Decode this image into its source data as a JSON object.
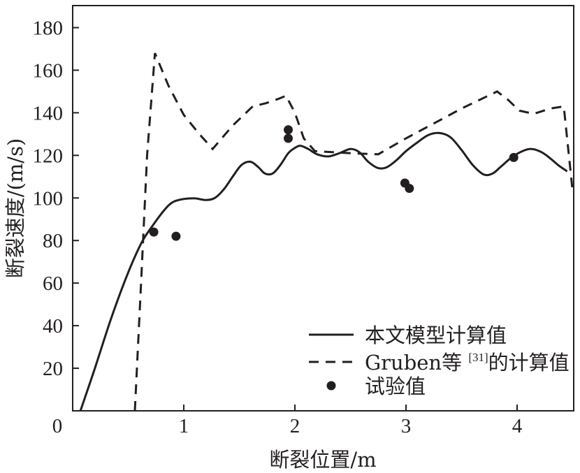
{
  "chart_data": {
    "type": "line",
    "xlabel": "断裂位置/m",
    "ylabel": "断裂速度/(m/s)",
    "xlim": [
      0,
      4.5
    ],
    "ylim": [
      0,
      190
    ],
    "x_ticks": [
      0,
      1,
      2,
      3,
      4
    ],
    "y_ticks": [
      20,
      40,
      60,
      80,
      100,
      120,
      140,
      160,
      180
    ],
    "grid": false,
    "legend_position": "bottom-right",
    "series": [
      {
        "name": "本文模型计算值",
        "style": "solid",
        "color": "#231f20",
        "points": [
          [
            0.07,
            0
          ],
          [
            0.2,
            20
          ],
          [
            0.35,
            44
          ],
          [
            0.5,
            65
          ],
          [
            0.62,
            79
          ],
          [
            0.72,
            87
          ],
          [
            0.82,
            94
          ],
          [
            0.9,
            98
          ],
          [
            1.0,
            99.5
          ],
          [
            1.1,
            99.8
          ],
          [
            1.2,
            99
          ],
          [
            1.28,
            100
          ],
          [
            1.36,
            104
          ],
          [
            1.44,
            110
          ],
          [
            1.52,
            115.5
          ],
          [
            1.6,
            117
          ],
          [
            1.67,
            114.5
          ],
          [
            1.73,
            111.5
          ],
          [
            1.8,
            111.5
          ],
          [
            1.87,
            115.5
          ],
          [
            1.94,
            121
          ],
          [
            2.0,
            123.5
          ],
          [
            2.05,
            124.5
          ],
          [
            2.12,
            123
          ],
          [
            2.2,
            120.5
          ],
          [
            2.3,
            119.5
          ],
          [
            2.4,
            121
          ],
          [
            2.5,
            123
          ],
          [
            2.58,
            121.5
          ],
          [
            2.66,
            117
          ],
          [
            2.75,
            114
          ],
          [
            2.83,
            114.5
          ],
          [
            2.92,
            118
          ],
          [
            3.0,
            122
          ],
          [
            3.1,
            126
          ],
          [
            3.2,
            129.5
          ],
          [
            3.3,
            130.5
          ],
          [
            3.4,
            128.5
          ],
          [
            3.5,
            122.5
          ],
          [
            3.6,
            115.5
          ],
          [
            3.7,
            111
          ],
          [
            3.78,
            111.5
          ],
          [
            3.85,
            114.5
          ],
          [
            3.95,
            119
          ],
          [
            4.05,
            122
          ],
          [
            4.13,
            123
          ],
          [
            4.22,
            121.5
          ],
          [
            4.3,
            118.5
          ],
          [
            4.38,
            115
          ],
          [
            4.45,
            112.5
          ]
        ]
      },
      {
        "name": "Gruben等的计算值",
        "name_superscript": "[31]",
        "style": "dashed",
        "color": "#231f20",
        "points": [
          [
            0.56,
            0
          ],
          [
            0.62,
            65
          ],
          [
            0.67,
            120
          ],
          [
            0.74,
            168
          ],
          [
            0.86,
            153
          ],
          [
            1.0,
            139
          ],
          [
            1.14,
            130
          ],
          [
            1.26,
            123
          ],
          [
            1.44,
            134
          ],
          [
            1.62,
            143
          ],
          [
            1.74,
            144.5
          ],
          [
            1.85,
            146.5
          ],
          [
            1.92,
            148
          ],
          [
            2.0,
            140
          ],
          [
            2.08,
            128
          ],
          [
            2.18,
            122
          ],
          [
            2.5,
            121
          ],
          [
            2.75,
            120.5
          ],
          [
            3.0,
            128
          ],
          [
            3.25,
            135
          ],
          [
            3.5,
            142
          ],
          [
            3.82,
            150
          ],
          [
            3.92,
            146
          ],
          [
            4.02,
            141
          ],
          [
            4.15,
            139.5
          ],
          [
            4.3,
            142
          ],
          [
            4.42,
            143
          ],
          [
            4.5,
            103
          ]
        ]
      },
      {
        "name": "试验值",
        "style": "markers",
        "color": "#231f20",
        "points": [
          [
            0.73,
            84
          ],
          [
            0.93,
            82
          ],
          [
            1.94,
            132
          ],
          [
            1.94,
            128
          ],
          [
            2.99,
            107
          ],
          [
            3.03,
            104.5
          ],
          [
            3.97,
            119
          ]
        ]
      }
    ]
  }
}
